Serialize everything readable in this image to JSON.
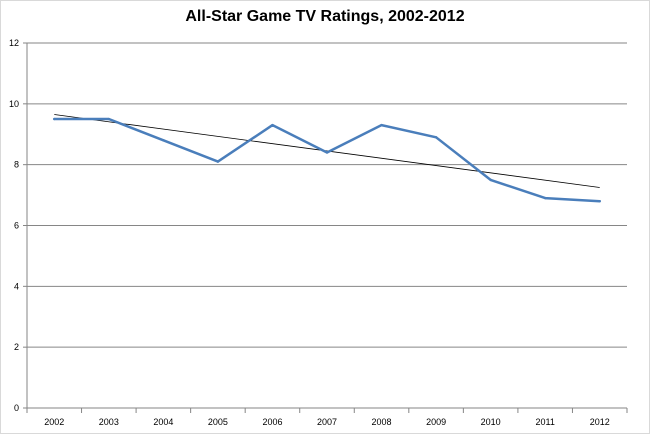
{
  "chart_data": {
    "type": "line",
    "title": "All-Star Game TV Ratings, 2002-2012",
    "xlabel": "",
    "ylabel": "",
    "categories": [
      "2002",
      "2003",
      "2004",
      "2005",
      "2006",
      "2007",
      "2008",
      "2009",
      "2010",
      "2011",
      "2012"
    ],
    "series": [
      {
        "values": [
          9.5,
          9.5,
          8.8,
          8.1,
          9.3,
          8.4,
          9.3,
          8.9,
          7.5,
          6.9,
          6.8
        ],
        "color": "#4a7ebb"
      }
    ],
    "trendline": {
      "start": 9.65,
      "end": 7.25,
      "color": "#000000"
    },
    "ylim": [
      0,
      12
    ],
    "yticks": [
      0,
      2,
      4,
      6,
      8,
      10,
      12
    ],
    "grid": true,
    "legend": "none"
  }
}
